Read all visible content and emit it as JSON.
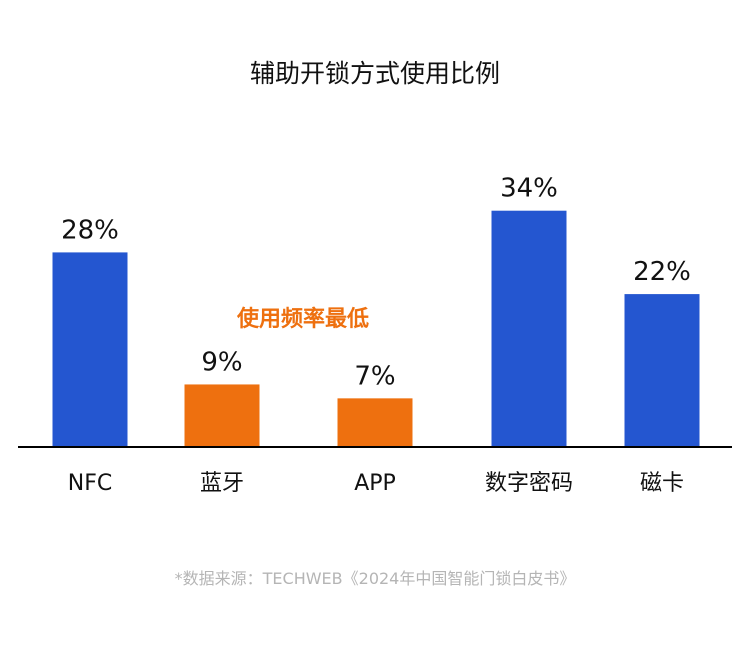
{
  "chart_data": {
    "type": "bar",
    "title": "辅助开锁方式使用比例",
    "categories": [
      "NFC",
      "蓝牙",
      "APP",
      "数字密码",
      "磁卡"
    ],
    "values": [
      28,
      9,
      7,
      34,
      22
    ],
    "value_labels": [
      "28%",
      "9%",
      "7%",
      "34%",
      "22%"
    ],
    "bar_colors": [
      "#2456D0",
      "#EE700F",
      "#EE700F",
      "#2456D0",
      "#2456D0"
    ],
    "ylim": [
      0,
      36
    ],
    "grid": false,
    "annotation": {
      "text": "使用频率最低",
      "color": "#EE700F"
    },
    "source": "*数据来源：TECHWEB《2024年中国智能门锁白皮书》"
  }
}
